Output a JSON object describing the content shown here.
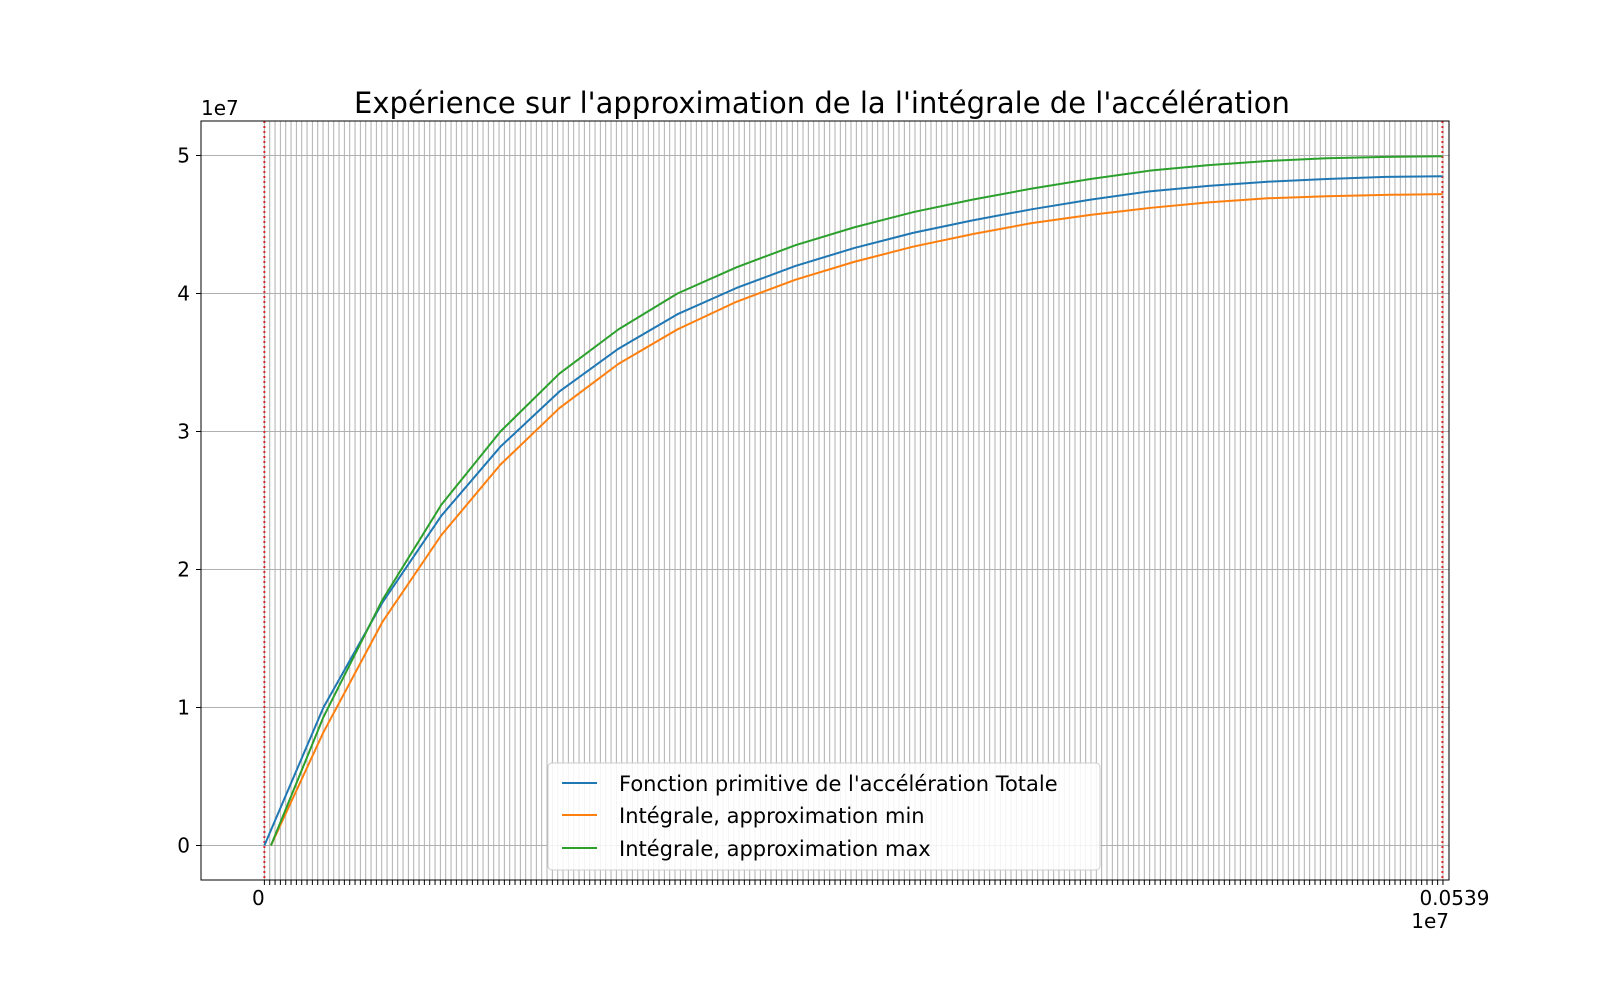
{
  "chart_data": {
    "type": "line",
    "title": "Expérience sur l'approximation de la l'intégrale de l'accélération",
    "xlabel": "",
    "ylabel": "",
    "x_offset_text": "1e7",
    "y_offset_text": "1e7",
    "xlim": [
      -0.0029,
      0.0542
    ],
    "ylim": [
      -2.5,
      52.5
    ],
    "yticks": [
      0,
      1,
      2,
      3,
      4,
      5
    ],
    "grid": true,
    "x_grid_step": 0.000244,
    "x_grid_start": 0,
    "x_grid_end": 0.05416,
    "x_tick_first_label": "0",
    "x_tick_last_label": "0.0539",
    "x_tick_labels_overlap_note": "",
    "vlines": [
      {
        "x": 0.0,
        "color": "#d62728",
        "style": "dotted"
      },
      {
        "x": 0.0539,
        "color": "#d62728",
        "style": "dotted"
      }
    ],
    "legend_position": "lower-center",
    "series": [
      {
        "name": "Fonction primitive de l'accélération Totale",
        "color": "#1f77b4",
        "x": [
          0.0,
          0.0027,
          0.0054,
          0.0081,
          0.0108,
          0.0135,
          0.0162,
          0.0189,
          0.0216,
          0.0243,
          0.027,
          0.0297,
          0.0324,
          0.0351,
          0.0378,
          0.0405,
          0.0432,
          0.0459,
          0.0486,
          0.0513,
          0.0539
        ],
        "y": [
          0.0,
          10.0,
          17.6,
          23.9,
          28.9,
          32.9,
          36.0,
          38.5,
          40.4,
          42.0,
          43.3,
          44.4,
          45.3,
          46.1,
          46.8,
          47.4,
          47.8,
          48.1,
          48.3,
          48.45,
          48.5
        ]
      },
      {
        "name": "Intégrale, approximation min",
        "color": "#ff7f0e",
        "x": [
          0.0003,
          0.0027,
          0.0054,
          0.0081,
          0.0108,
          0.0135,
          0.0162,
          0.0189,
          0.0216,
          0.0243,
          0.027,
          0.0297,
          0.0324,
          0.0351,
          0.0378,
          0.0405,
          0.0432,
          0.0459,
          0.0486,
          0.0513,
          0.0539
        ],
        "y": [
          0.0,
          8.2,
          16.2,
          22.5,
          27.6,
          31.7,
          34.9,
          37.4,
          39.4,
          41.0,
          42.3,
          43.4,
          44.3,
          45.1,
          45.7,
          46.2,
          46.6,
          46.9,
          47.05,
          47.15,
          47.2
        ]
      },
      {
        "name": "Intégrale, approximation max",
        "color": "#2ca02c",
        "x": [
          0.0003,
          0.0027,
          0.0054,
          0.0081,
          0.0108,
          0.0135,
          0.0162,
          0.0189,
          0.0216,
          0.0243,
          0.027,
          0.0297,
          0.0324,
          0.0351,
          0.0378,
          0.0405,
          0.0432,
          0.0459,
          0.0486,
          0.0513,
          0.0539
        ],
        "y": [
          0.0,
          9.3,
          17.8,
          24.7,
          30.0,
          34.2,
          37.4,
          40.0,
          41.9,
          43.5,
          44.8,
          45.9,
          46.8,
          47.6,
          48.3,
          48.9,
          49.3,
          49.6,
          49.8,
          49.9,
          49.95
        ]
      }
    ]
  }
}
